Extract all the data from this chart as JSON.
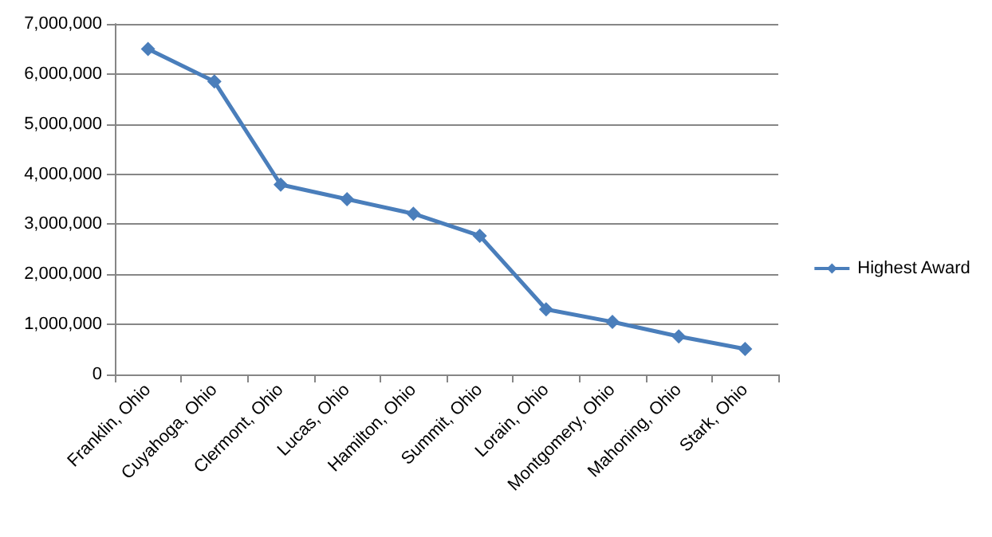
{
  "chart_data": {
    "type": "line",
    "categories": [
      "Franklin, Ohio",
      "Cuyahoga, Ohio",
      "Clermont, Ohio",
      "Lucas, Ohio",
      "Hamilton, Ohio",
      "Summit, Ohio",
      "Lorain, Ohio",
      "Montgomery, Ohio",
      "Mahoning, Ohio",
      "Stark, Ohio"
    ],
    "series": [
      {
        "name": "Highest Award",
        "color": "#4a7ebb",
        "values": [
          6500000,
          5850000,
          3790000,
          3500000,
          3210000,
          2770000,
          1300000,
          1050000,
          760000,
          510000
        ]
      }
    ],
    "ylim": [
      0,
      7000000
    ],
    "yticks": [
      {
        "value": 0,
        "label": "0"
      },
      {
        "value": 1000000,
        "label": "1,000,000"
      },
      {
        "value": 2000000,
        "label": "2,000,000"
      },
      {
        "value": 3000000,
        "label": "3,000,000"
      },
      {
        "value": 4000000,
        "label": "4,000,000"
      },
      {
        "value": 5000000,
        "label": "5,000,000"
      },
      {
        "value": 6000000,
        "label": "6,000,000"
      },
      {
        "value": 7000000,
        "label": "7,000,000"
      }
    ],
    "grid": "y",
    "legend": "right",
    "marker": "diamond",
    "line_style": "solid"
  }
}
